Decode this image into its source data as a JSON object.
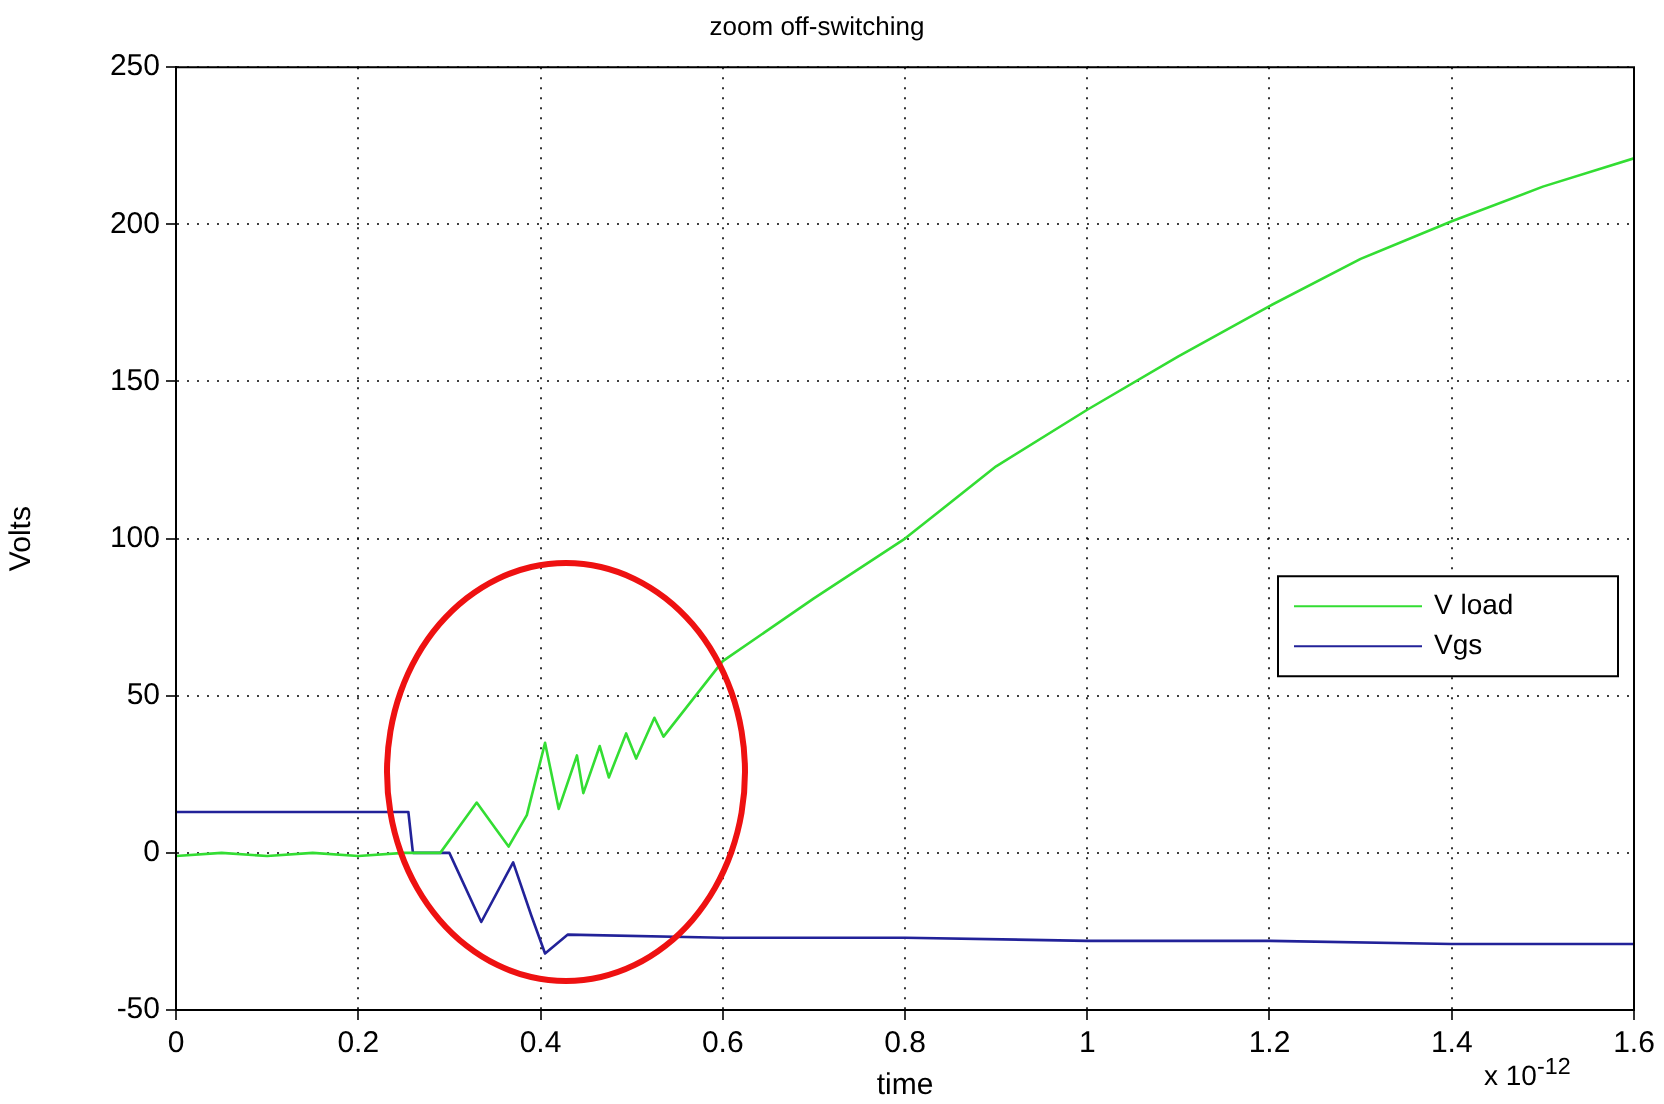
{
  "chart_data": {
    "type": "line",
    "title": "zoom off-switching",
    "xlabel": "time",
    "ylabel": "Volts",
    "annotations": [
      "x 10$^{-12}$"
    ],
    "series": [
      {
        "name": "V load",
        "color": "#33dd33",
        "x": [
          0,
          0.05,
          0.1,
          0.15,
          0.2,
          0.25,
          0.29,
          0.31,
          0.33,
          0.35,
          0.365,
          0.385,
          0.405,
          0.42,
          0.44,
          0.447,
          0.465,
          0.475,
          0.494,
          0.505,
          0.525,
          0.535,
          0.6,
          0.7,
          0.8,
          0.9,
          1.0,
          1.1,
          1.2,
          1.3,
          1.4,
          1.5,
          1.6
        ],
        "values": [
          -1,
          0,
          -1,
          0,
          -1,
          0,
          0,
          8,
          16,
          8,
          2,
          12,
          35,
          14,
          31,
          19,
          34,
          24,
          38,
          30,
          43,
          37,
          61,
          81,
          100,
          123,
          141,
          158,
          174,
          189,
          201,
          212,
          221
        ]
      },
      {
        "name": "Vgs",
        "color": "#222299",
        "x": [
          0,
          0.255,
          0.26,
          0.3,
          0.335,
          0.37,
          0.39,
          0.405,
          0.43,
          0.6,
          0.8,
          1.0,
          1.2,
          1.4,
          1.6
        ],
        "values": [
          13,
          13,
          0,
          0,
          -22,
          -3,
          -20,
          -32,
          -26,
          -27,
          -27,
          -28,
          -28,
          -29,
          -29
        ]
      }
    ],
    "xlim": [
      0,
      1.6
    ],
    "xticks": [
      0,
      0.2,
      0.4,
      0.6,
      0.8,
      1,
      1.2,
      1.4,
      1.6
    ],
    "ylim": [
      -50,
      250
    ],
    "yticks": [
      -50,
      0,
      50,
      100,
      150,
      200,
      250
    ],
    "grid": true,
    "legend": "right",
    "marker": "none",
    "line_style": "solid"
  }
}
